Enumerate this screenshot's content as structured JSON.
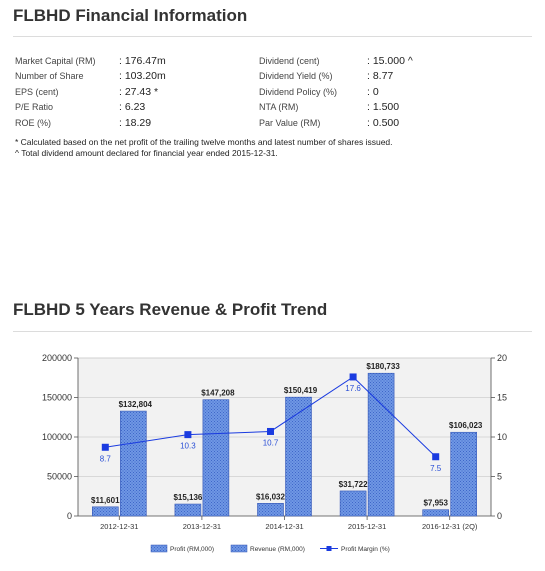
{
  "financial": {
    "title": "FLBHD Financial Information",
    "rows": [
      {
        "l1": "Market Capital (RM)",
        "v1": ": 176.47m",
        "l2": "Dividend (cent)",
        "v2": ": 15.000 ^"
      },
      {
        "l1": "Number of Share",
        "v1": ": 103.20m",
        "l2": "Dividend Yield (%)",
        "v2": ": 8.77"
      },
      {
        "l1": "EPS (cent)",
        "v1": ": 27.43 *",
        "l2": "Dividend Policy (%)",
        "v2": ": 0"
      },
      {
        "l1": "P/E Ratio",
        "v1": ": 6.23",
        "l2": "NTA (RM)",
        "v2": ": 1.500"
      },
      {
        "l1": "ROE (%)",
        "v1": ": 18.29",
        "l2": "Par Value (RM)",
        "v2": ": 0.500"
      }
    ],
    "note1": "* Calculated based on the net profit of the trailing twelve months and latest number of shares issued.",
    "note2": "^ Total dividend amount declared for financial year ended 2015-12-31."
  },
  "trend": {
    "title": "FLBHD 5 Years Revenue & Profit Trend"
  },
  "colors": {
    "bar_fill": "#5b86d9",
    "bar_stroke": "#3557b5",
    "line": "#1a3be0",
    "grid": "#cfcfcf",
    "plot_bg": "#f2f2f2"
  },
  "chart_data": {
    "type": "bar",
    "categories": [
      "2012-12-31",
      "2013-12-31",
      "2014-12-31",
      "2015-12-31",
      "2016-12-31 (2Q)"
    ],
    "series": [
      {
        "name": "Profit (RM,000)",
        "type": "bar",
        "values": [
          11601,
          15136,
          16032,
          31722,
          7953
        ],
        "labels": [
          "$11,601",
          "$15,136",
          "$16,032",
          "$31,722",
          "$7,953"
        ]
      },
      {
        "name": "Revenue (RM,000)",
        "type": "bar",
        "values": [
          132804,
          147208,
          150419,
          180733,
          106023
        ],
        "labels": [
          "$132,804",
          "$147,208",
          "$150,419",
          "$180,733",
          "$106,023"
        ]
      },
      {
        "name": "Profit Margin (%)",
        "type": "line",
        "axis": "right",
        "values": [
          8.7,
          10.3,
          10.7,
          17.6,
          7.5
        ],
        "labels": [
          "8.7",
          "10.3",
          "10.7",
          "17.6",
          "7.5"
        ]
      }
    ],
    "ylim": [
      0,
      200000
    ],
    "yticks": [
      0,
      50000,
      100000,
      150000,
      200000
    ],
    "ytick_labels": [
      "0",
      "50000",
      "100000",
      "150000",
      "200000"
    ],
    "y2lim": [
      0,
      20
    ],
    "y2ticks": [
      0,
      5,
      10,
      15,
      20
    ],
    "y2tick_labels": [
      "0",
      "5",
      "10",
      "15",
      "20"
    ],
    "legend": "bottom"
  }
}
